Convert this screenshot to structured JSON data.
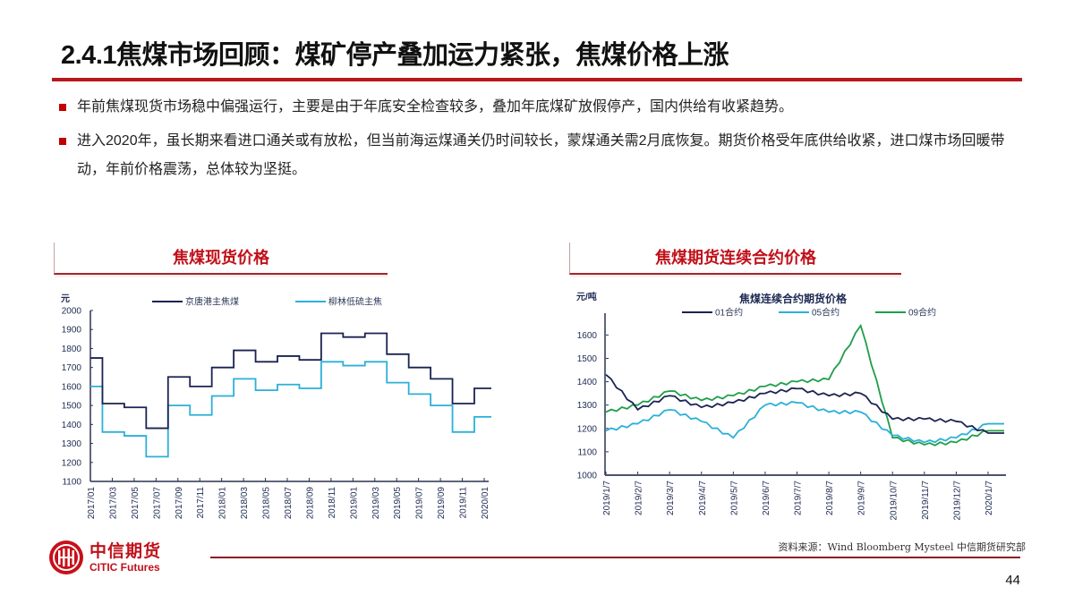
{
  "header": {
    "title": "2.4.1焦煤市场回顾：煤矿停产叠加运力紧张，焦煤价格上涨",
    "accent_color": "#b8171c"
  },
  "bullets": [
    {
      "text": "年前焦煤现货市场稳中偏强运行，主要是由于年底安全检查较多，叠加年底煤矿放假停产，国内供给有收紧趋势。"
    },
    {
      "text": "进入2020年，虽长期来看进口通关或有放松，但当前海运煤通关仍时间较长，蒙煤通关需2月底恢复。期货价格受年底供给收紧，进口煤市场回暖带动，年前价格震荡，总体较为坚挺。"
    }
  ],
  "panels": {
    "left_title": "焦煤现货价格",
    "right_title": "焦煤期货连续合约价格"
  },
  "chart_data": [
    {
      "type": "line",
      "title": "焦煤现货价格",
      "ylabel": "元",
      "xlabel": "",
      "ylim": [
        1100,
        2000
      ],
      "yticks": [
        1100,
        1200,
        1300,
        1400,
        1500,
        1600,
        1700,
        1800,
        1900,
        2000
      ],
      "categories": [
        "2017/01",
        "2017/03",
        "2017/05",
        "2017/07",
        "2017/09",
        "2017/11",
        "2018/01",
        "2018/03",
        "2018/05",
        "2018/07",
        "2018/09",
        "2018/11",
        "2019/01",
        "2019/03",
        "2019/05",
        "2019/07",
        "2019/09",
        "2019/11",
        "2020/01"
      ],
      "grid": false,
      "legend_position": "top",
      "series": [
        {
          "name": "京唐港主焦煤",
          "color": "#1a2352",
          "values": [
            1750,
            1510,
            1490,
            1380,
            1650,
            1600,
            1700,
            1790,
            1730,
            1760,
            1740,
            1880,
            1860,
            1880,
            1770,
            1700,
            1640,
            1510,
            1590
          ]
        },
        {
          "name": "柳林低硫主焦",
          "color": "#2bb0d8",
          "values": [
            1600,
            1360,
            1340,
            1230,
            1500,
            1450,
            1550,
            1640,
            1580,
            1610,
            1590,
            1730,
            1710,
            1730,
            1620,
            1560,
            1500,
            1360,
            1440
          ]
        }
      ]
    },
    {
      "type": "line",
      "title": "焦煤连续合约期货价格",
      "ylabel": "元/吨",
      "xlabel": "",
      "ylim": [
        1000,
        1650
      ],
      "yticks": [
        1000,
        1100,
        1200,
        1300,
        1400,
        1500,
        1600
      ],
      "categories": [
        "2019/1/7",
        "2019/2/7",
        "2019/3/7",
        "2019/4/7",
        "2019/5/7",
        "2019/6/7",
        "2019/7/7",
        "2019/8/7",
        "2019/9/7",
        "2019/10/7",
        "2019/11/7",
        "2019/12/7",
        "2020/1/7"
      ],
      "grid": false,
      "legend_position": "top",
      "series": [
        {
          "name": "01合约",
          "color": "#1a2352",
          "values": [
            1430,
            1280,
            1340,
            1290,
            1310,
            1350,
            1370,
            1340,
            1350,
            1240,
            1240,
            1230,
            1180
          ]
        },
        {
          "name": "05合约",
          "color": "#2bb0d8",
          "values": [
            1190,
            1220,
            1280,
            1230,
            1160,
            1300,
            1310,
            1270,
            1270,
            1170,
            1140,
            1160,
            1220
          ]
        },
        {
          "name": "09合约",
          "color": "#1e9e4a",
          "values": [
            1270,
            1300,
            1360,
            1320,
            1340,
            1380,
            1400,
            1410,
            1640,
            1160,
            1130,
            1140,
            1190
          ]
        }
      ]
    }
  ],
  "footer": {
    "logo_cn": "中信期货",
    "logo_en": "CITIC Futures",
    "source": "资料来源：Wind Bloomberg Mysteel 中信期货研究部",
    "page_number": "44"
  }
}
